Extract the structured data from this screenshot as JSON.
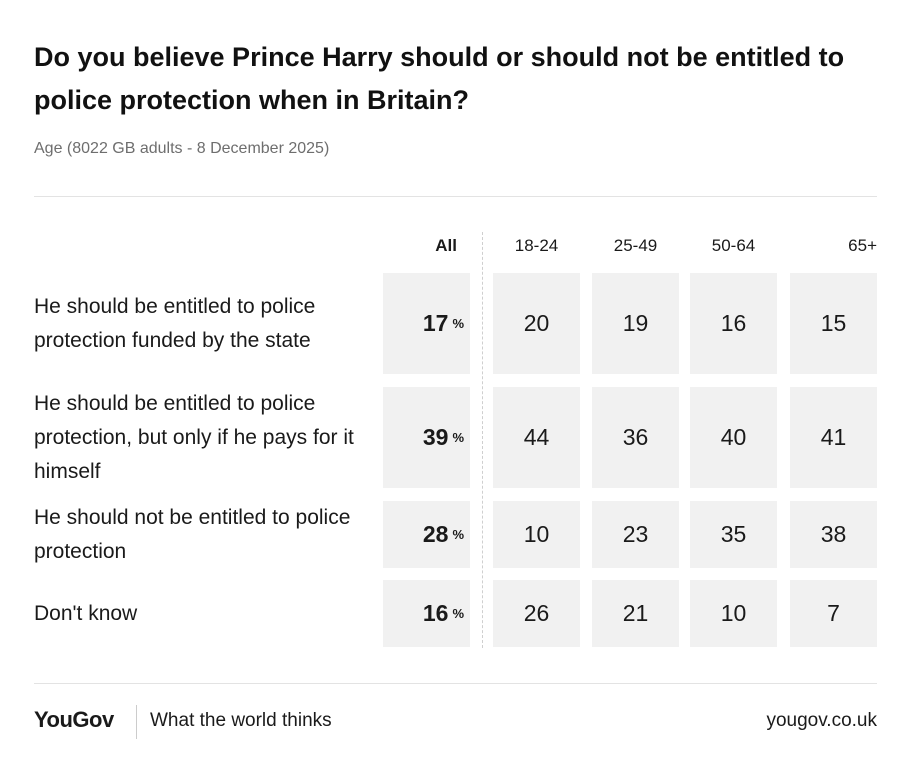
{
  "header": {
    "title": "Do you believe Prince Harry should or should not be entitled to police protection when in Britain?",
    "subtitle": "Age (8022 GB adults - 8 December 2025)"
  },
  "table": {
    "columns": [
      "All",
      "18-24",
      "25-49",
      "50-64",
      "65+"
    ],
    "unit": "%",
    "rows": [
      {
        "label": "He should be entitled to police protection funded by the state",
        "values": [
          17,
          20,
          19,
          16,
          15
        ]
      },
      {
        "label": "He should be entitled to police protection, but only if he pays for it himself",
        "values": [
          39,
          44,
          36,
          40,
          41
        ]
      },
      {
        "label": "He should not be entitled to police protection",
        "values": [
          28,
          10,
          23,
          35,
          38
        ]
      },
      {
        "label": "Don't know",
        "values": [
          16,
          26,
          21,
          10,
          7
        ]
      }
    ]
  },
  "footer": {
    "brand": "YouGov",
    "tagline": "What the world thinks",
    "url": "yougov.co.uk"
  }
}
